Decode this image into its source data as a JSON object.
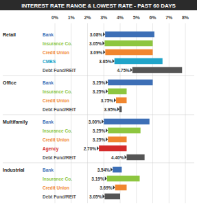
{
  "chart_data": {
    "type": "bar",
    "orientation": "horizontal",
    "title": "INTEREST RATE RANGE & LOWEST RATE - PAST 60 DAYS",
    "xlim": [
      0,
      8
    ],
    "xticks": [
      {
        "value": 0,
        "label": "0%"
      },
      {
        "value": 1,
        "label": "1%"
      },
      {
        "value": 2,
        "label": "2%"
      },
      {
        "value": 3,
        "label": "3%"
      },
      {
        "value": 4,
        "label": "4%"
      },
      {
        "value": 5,
        "label": "5%"
      },
      {
        "value": 6,
        "label": "6%"
      },
      {
        "value": 7,
        "label": "7%"
      },
      {
        "value": 8,
        "label": "8%"
      }
    ],
    "grid": true,
    "data_labels": true,
    "groups": [
      {
        "name": "Retail",
        "categories": [
          "Bank",
          "Insurance Co.",
          "Credit Union",
          "CMBS",
          "Debt Fund/REIT"
        ],
        "values": [
          3.08,
          3.05,
          3.09,
          3.65,
          4.75
        ],
        "value_labels": [
          "3.08%",
          "3.05%",
          "3.09%",
          "3.65%",
          "4.75%"
        ],
        "high": [
          6.1,
          6.0,
          6.0,
          6.6,
          7.8
        ],
        "colors": [
          "#3d6fb6",
          "#8dc63f",
          "#f0862f",
          "#20a4c9",
          "#555555"
        ]
      },
      {
        "name": "Office",
        "categories": [
          "Bank",
          "Insurance Co.",
          "Credit Union",
          "Debt Fund/REIT"
        ],
        "values": [
          3.25,
          3.25,
          3.75,
          3.95
        ],
        "value_labels": [
          "3.25%",
          "3.25%",
          "3.75%",
          "3.95%"
        ],
        "high": [
          6.0,
          4.4,
          4.4,
          4.1
        ],
        "colors": [
          "#3d6fb6",
          "#8dc63f",
          "#f0862f",
          "#555555"
        ]
      },
      {
        "name": "Multifamily",
        "categories": [
          "Bank",
          "Insurance Co.",
          "Credit Union",
          "Agency",
          "Debt Fund/REIT"
        ],
        "values": [
          3.0,
          3.25,
          3.25,
          2.7,
          4.4
        ],
        "value_labels": [
          "3.00%",
          "3.25%",
          "3.25%",
          "2.70%",
          "4.40%"
        ],
        "high": [
          5.8,
          5.25,
          4.4,
          4.4,
          5.5
        ],
        "colors": [
          "#3d6fb6",
          "#8dc63f",
          "#f0862f",
          "#d42a2a",
          "#555555"
        ]
      },
      {
        "name": "Industrial",
        "categories": [
          "Bank",
          "Insurance Co.",
          "Credit Union",
          "Debt Fund/REIT"
        ],
        "values": [
          3.54,
          3.19,
          3.69,
          3.05
        ],
        "value_labels": [
          "3.54%",
          "3.19%",
          "3.69%",
          "3.05%"
        ],
        "high": [
          4.1,
          5.2,
          4.4,
          4.0
        ],
        "colors": [
          "#3d6fb6",
          "#8dc63f",
          "#f0862f",
          "#555555"
        ]
      }
    ]
  }
}
